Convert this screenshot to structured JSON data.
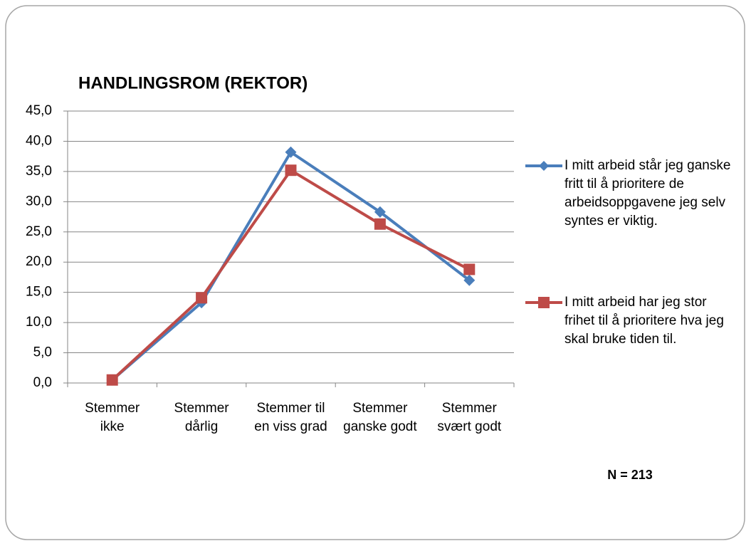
{
  "chart_data": {
    "type": "line",
    "title": "HANDLINGSROM (REKTOR)",
    "categories": [
      "Stemmer ikke",
      "Stemmer dårlig",
      "Stemmer til en viss grad",
      "Stemmer ganske godt",
      "Stemmer svært godt"
    ],
    "series": [
      {
        "name": "I mitt arbeid står jeg ganske fritt til å prioritere de arbeidsoppgavene jeg selv syntes er viktig.",
        "color": "#4a7ebb",
        "marker": "diamond",
        "values": [
          0.5,
          13.3,
          38.2,
          28.3,
          17.0
        ]
      },
      {
        "name": "I mitt arbeid har jeg stor frihet til å prioritere hva jeg skal bruke tiden til.",
        "color": "#be4b48",
        "marker": "square",
        "values": [
          0.5,
          14.1,
          35.2,
          26.3,
          18.8
        ]
      }
    ],
    "ylim": [
      0,
      45
    ],
    "yticks": [
      {
        "value": 0,
        "label": "0,0"
      },
      {
        "value": 5,
        "label": "5,0"
      },
      {
        "value": 10,
        "label": "10,0"
      },
      {
        "value": 15,
        "label": "15,0"
      },
      {
        "value": 20,
        "label": "20,0"
      },
      {
        "value": 25,
        "label": "25,0"
      },
      {
        "value": 30,
        "label": "30,0"
      },
      {
        "value": 35,
        "label": "35,0"
      },
      {
        "value": 40,
        "label": "40,0"
      },
      {
        "value": 45,
        "label": "45,0"
      }
    ],
    "grid": true,
    "legend": "right",
    "annotation": "N = 213"
  }
}
